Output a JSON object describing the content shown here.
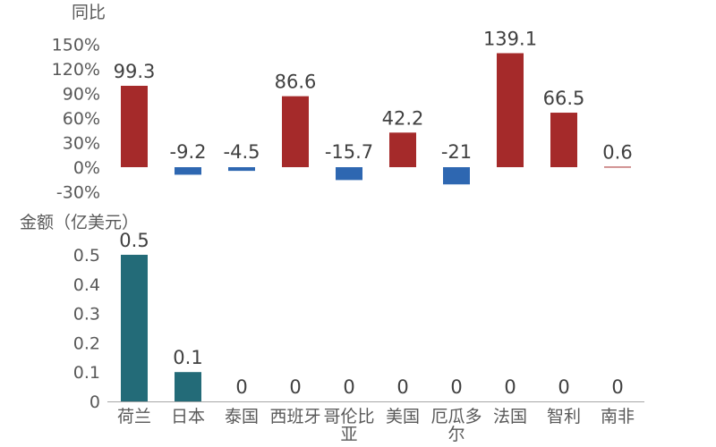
{
  "chart_data": [
    {
      "type": "bar",
      "ylabel": "同比",
      "categories": [
        "荷兰",
        "日本",
        "泰国",
        "西班牙",
        "哥伦比亚",
        "美国",
        "厄瓜多尔",
        "法国",
        "智利",
        "南非"
      ],
      "values": [
        99.3,
        -9.2,
        -4.5,
        86.6,
        -15.7,
        42.2,
        -21,
        139.1,
        66.5,
        0.6
      ],
      "labels": [
        "99.3",
        "-9.2",
        "-4.5",
        "86.6",
        "-15.7",
        "42.2",
        "-21",
        "139.1",
        "66.5",
        "0.6"
      ],
      "yticks": [
        "150%",
        "120%",
        "90%",
        "60%",
        "30%",
        "0%",
        "-30%"
      ],
      "ylim": [
        -30,
        150
      ],
      "colors": {
        "positive": "#A52A2A",
        "negative": "#2E67B1"
      }
    },
    {
      "type": "bar",
      "ylabel": "金额（亿美元）",
      "categories": [
        "荷兰",
        "日本",
        "泰国",
        "西班牙",
        "哥伦比亚",
        "美国",
        "厄瓜多尔",
        "法国",
        "智利",
        "南非"
      ],
      "category_lines": [
        [
          "荷兰"
        ],
        [
          "日本"
        ],
        [
          "泰国"
        ],
        [
          "西班牙"
        ],
        [
          "哥伦比",
          "亚"
        ],
        [
          "美国"
        ],
        [
          "厄瓜多",
          "尔"
        ],
        [
          "法国"
        ],
        [
          "智利"
        ],
        [
          "南非"
        ]
      ],
      "values": [
        0.5,
        0.1,
        0,
        0,
        0,
        0,
        0,
        0,
        0,
        0
      ],
      "labels": [
        "0.5",
        "0.1",
        "0",
        "0",
        "0",
        "0",
        "0",
        "0",
        "0",
        "0"
      ],
      "yticks": [
        "0.5",
        "0.4",
        "0.3",
        "0.2",
        "0.1",
        "0"
      ],
      "ylim": [
        0,
        0.5
      ],
      "colors": {
        "bar": "#236B78",
        "axis": "#A6A6A6"
      }
    }
  ]
}
